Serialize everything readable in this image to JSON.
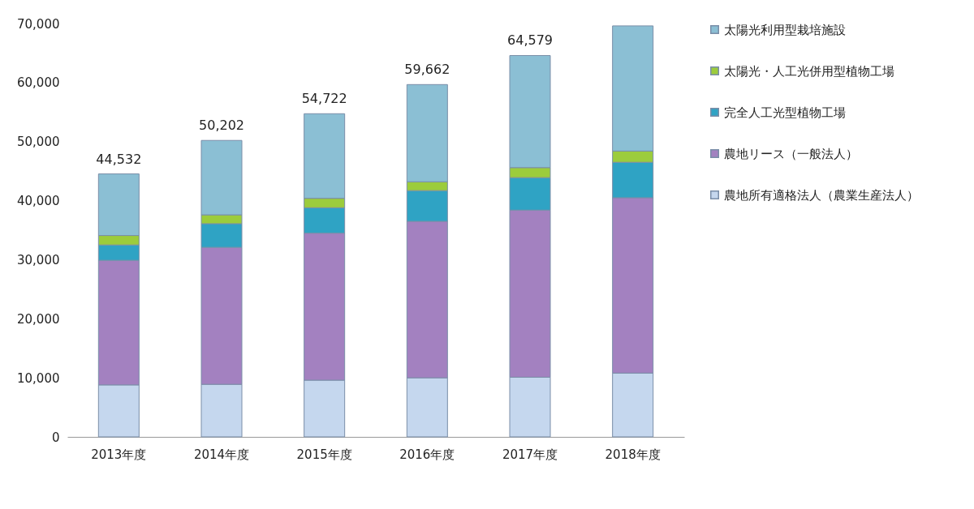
{
  "chart_data": {
    "type": "bar",
    "stacked": true,
    "categories": [
      "2013年度",
      "2014年度",
      "2015年度",
      "2016年度",
      "2017年度",
      "2018年度"
    ],
    "series": [
      {
        "name": "農地所有適格法人（農業生産法人）",
        "color": "#c5d7ee",
        "values": [
          8800,
          8900,
          9600,
          10000,
          10100,
          10800
        ]
      },
      {
        "name": "農地リース（一般法人）",
        "color": "#a381c0",
        "values": [
          21100,
          23200,
          24900,
          26500,
          28300,
          29700
        ]
      },
      {
        "name": "完全人工光型植物工場",
        "color": "#2fa3c4",
        "values": [
          2600,
          4000,
          4300,
          5200,
          5500,
          6000
        ]
      },
      {
        "name": "太陽光・人工光併用型植物工場",
        "color": "#9ccc3c",
        "values": [
          1600,
          1500,
          1600,
          1500,
          1700,
          1900
        ]
      },
      {
        "name": "太陽光利用型栽培施設",
        "color": "#8bbfd4",
        "values": [
          10432,
          12602,
          14322,
          16462,
          18979,
          21200
        ]
      }
    ],
    "totals": [
      "44,532",
      "50,202",
      "54,722",
      "59,662",
      "64,579",
      null
    ],
    "ylim": [
      0,
      70000
    ],
    "yticks": [
      {
        "value": 0,
        "label": "0"
      },
      {
        "value": 10000,
        "label": "10,000"
      },
      {
        "value": 20000,
        "label": "20,000"
      },
      {
        "value": 30000,
        "label": "30,000"
      },
      {
        "value": 40000,
        "label": "40,000"
      },
      {
        "value": 50000,
        "label": "50,000"
      },
      {
        "value": 60000,
        "label": "60,000"
      },
      {
        "value": 70000,
        "label": "70,000"
      }
    ],
    "grid": false,
    "legend": "right"
  }
}
